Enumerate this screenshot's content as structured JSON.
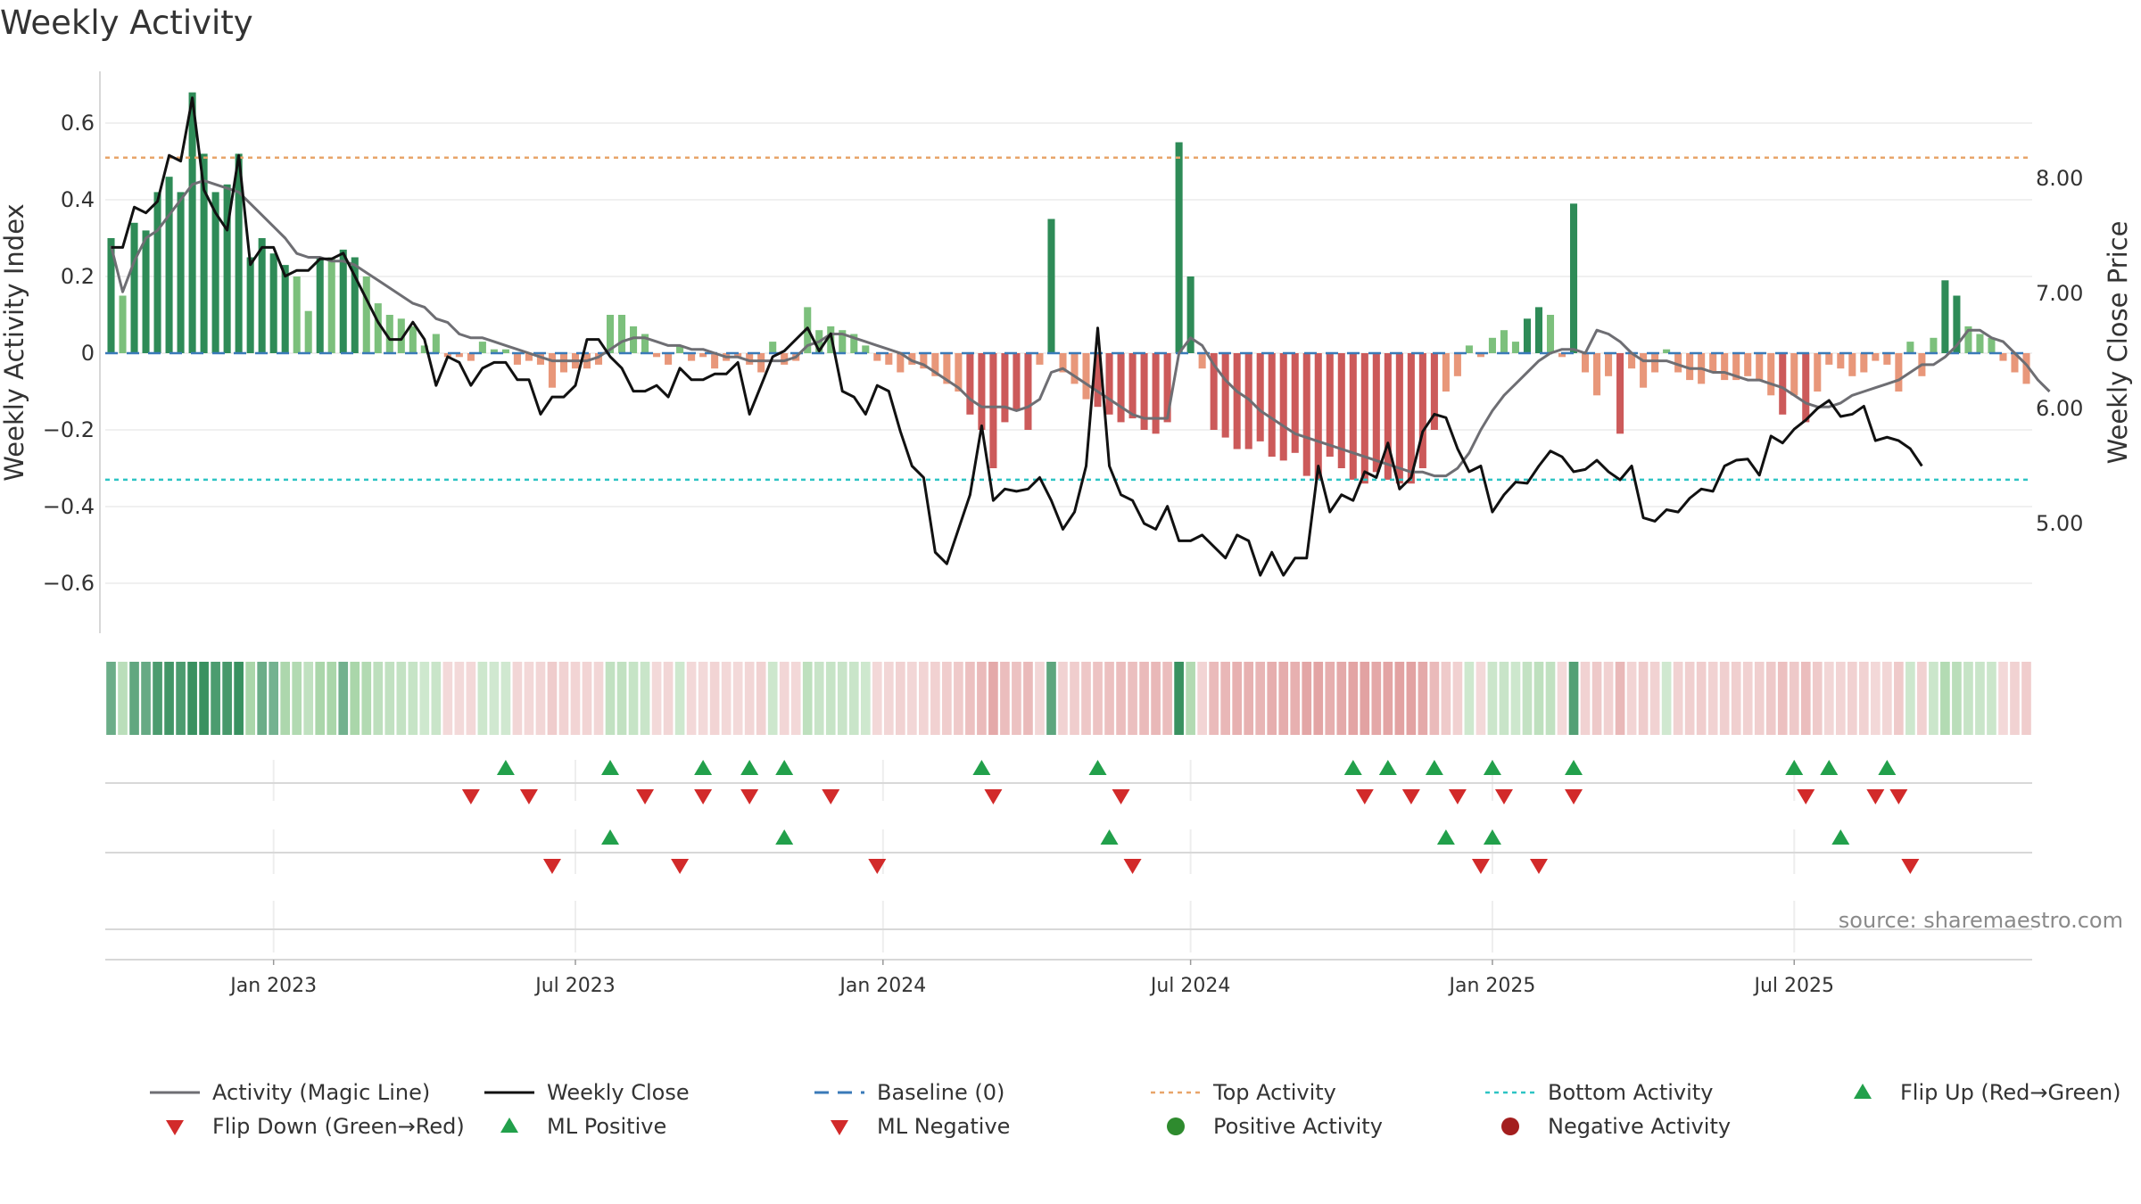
{
  "chart_data": {
    "type": "bar",
    "title": "Weekly Activity",
    "ylabel_left": "Weekly Activity Index",
    "ylabel_right": "Weekly Close Price",
    "ylim_left": [
      -0.74,
      0.74
    ],
    "ylim_right": [
      4.2,
      8.8
    ],
    "yticks_left": [
      {
        "v": 0.6,
        "label": "0.6"
      },
      {
        "v": 0.4,
        "label": "0.4"
      },
      {
        "v": 0.2,
        "label": "0.2"
      },
      {
        "v": 0,
        "label": "0"
      },
      {
        "v": -0.2,
        "label": "−0.2"
      },
      {
        "v": -0.4,
        "label": "−0.4"
      },
      {
        "v": -0.6,
        "label": "−0.6"
      }
    ],
    "yticks_right": [
      {
        "v": 8.0,
        "label": "8.00"
      },
      {
        "v": 7.0,
        "label": "7.00"
      },
      {
        "v": 6.0,
        "label": "6.00"
      },
      {
        "v": 5.0,
        "label": "5.00"
      }
    ],
    "x_start_week": 0,
    "x_end_week": 158,
    "xticks": [
      {
        "week": 14,
        "label": "Jan 2023"
      },
      {
        "week": 40,
        "label": "Jul 2023"
      },
      {
        "week": 66.5,
        "label": "Jan 2024"
      },
      {
        "week": 93,
        "label": "Jul 2024"
      },
      {
        "week": 119,
        "label": "Jan 2025"
      },
      {
        "week": 145,
        "label": "Jul 2025"
      }
    ],
    "top_activity": 0.51,
    "bottom_activity": -0.33,
    "activity": [
      0.3,
      0.15,
      0.34,
      0.32,
      0.42,
      0.46,
      0.42,
      0.68,
      0.52,
      0.42,
      0.44,
      0.52,
      0.25,
      0.3,
      0.26,
      0.23,
      0.2,
      0.11,
      0.25,
      0.25,
      0.27,
      0.25,
      0.2,
      0.13,
      0.1,
      0.09,
      0.07,
      0.02,
      0.05,
      -0.01,
      -0.01,
      -0.02,
      0.03,
      0.01,
      0.01,
      -0.03,
      -0.02,
      -0.03,
      -0.09,
      -0.05,
      -0.04,
      -0.04,
      -0.03,
      0.1,
      0.1,
      0.07,
      0.05,
      -0.01,
      -0.03,
      0.02,
      -0.02,
      -0.01,
      -0.04,
      -0.02,
      -0.01,
      -0.03,
      -0.05,
      0.03,
      -0.03,
      -0.02,
      0.12,
      0.06,
      0.07,
      0.06,
      0.05,
      0.02,
      -0.02,
      -0.03,
      -0.05,
      -0.03,
      -0.04,
      -0.06,
      -0.08,
      -0.1,
      -0.16,
      -0.2,
      -0.3,
      -0.18,
      -0.15,
      -0.2,
      -0.03,
      0.35,
      -0.05,
      -0.08,
      -0.12,
      -0.14,
      -0.16,
      -0.18,
      -0.17,
      -0.2,
      -0.21,
      -0.18,
      0.55,
      0.2,
      -0.04,
      -0.2,
      -0.22,
      -0.25,
      -0.25,
      -0.23,
      -0.27,
      -0.28,
      -0.26,
      -0.32,
      -0.33,
      -0.27,
      -0.3,
      -0.33,
      -0.34,
      -0.31,
      -0.33,
      -0.34,
      -0.34,
      -0.3,
      -0.2,
      -0.1,
      -0.06,
      0.02,
      -0.01,
      0.04,
      0.06,
      0.03,
      0.09,
      0.12,
      0.1,
      -0.01,
      0.39,
      -0.05,
      -0.11,
      -0.06,
      -0.21,
      -0.04,
      -0.09,
      -0.05,
      0.01,
      -0.05,
      -0.07,
      -0.08,
      -0.05,
      -0.07,
      -0.07,
      -0.06,
      -0.07,
      -0.11,
      -0.16,
      -0.11,
      -0.18,
      -0.1,
      -0.03,
      -0.04,
      -0.06,
      -0.05,
      -0.02,
      -0.03,
      -0.1,
      0.03,
      -0.06,
      0.04,
      0.19,
      0.15,
      0.07,
      0.05,
      0.04,
      -0.02,
      -0.05,
      -0.08
    ],
    "magic_line": [
      0.28,
      0.16,
      0.24,
      0.3,
      0.32,
      0.36,
      0.4,
      0.44,
      0.45,
      0.44,
      0.43,
      0.42,
      0.39,
      0.36,
      0.33,
      0.3,
      0.26,
      0.25,
      0.25,
      0.24,
      0.24,
      0.23,
      0.21,
      0.19,
      0.17,
      0.15,
      0.13,
      0.12,
      0.09,
      0.08,
      0.05,
      0.04,
      0.04,
      0.03,
      0.02,
      0.01,
      0.0,
      -0.01,
      -0.02,
      -0.02,
      -0.02,
      -0.02,
      -0.01,
      0.01,
      0.03,
      0.04,
      0.04,
      0.03,
      0.02,
      0.02,
      0.01,
      0.01,
      0.0,
      -0.01,
      -0.01,
      -0.02,
      -0.02,
      -0.02,
      -0.02,
      -0.01,
      0.02,
      0.03,
      0.05,
      0.05,
      0.04,
      0.03,
      0.02,
      0.01,
      0.0,
      -0.02,
      -0.03,
      -0.05,
      -0.07,
      -0.09,
      -0.12,
      -0.14,
      -0.14,
      -0.14,
      -0.15,
      -0.14,
      -0.12,
      -0.05,
      -0.04,
      -0.06,
      -0.08,
      -0.1,
      -0.12,
      -0.14,
      -0.16,
      -0.17,
      -0.17,
      -0.17,
      0.0,
      0.04,
      0.02,
      -0.03,
      -0.07,
      -0.1,
      -0.12,
      -0.15,
      -0.17,
      -0.19,
      -0.21,
      -0.22,
      -0.23,
      -0.24,
      -0.25,
      -0.26,
      -0.27,
      -0.28,
      -0.29,
      -0.3,
      -0.31,
      -0.31,
      -0.32,
      -0.32,
      -0.3,
      -0.26,
      -0.2,
      -0.15,
      -0.11,
      -0.08,
      -0.05,
      -0.02,
      0.0,
      0.01,
      0.01,
      0.0,
      0.06,
      0.05,
      0.03,
      0.0,
      -0.02,
      -0.02,
      -0.02,
      -0.03,
      -0.04,
      -0.04,
      -0.05,
      -0.05,
      -0.06,
      -0.07,
      -0.07,
      -0.08,
      -0.09,
      -0.11,
      -0.13,
      -0.14,
      -0.14,
      -0.13,
      -0.11,
      -0.1,
      -0.09,
      -0.08,
      -0.07,
      -0.05,
      -0.03,
      -0.03,
      -0.01,
      0.02,
      0.06,
      0.06,
      0.04,
      0.03,
      0.0,
      -0.03,
      -0.07,
      -0.1
    ],
    "weekly_close": [
      7.4,
      7.4,
      7.75,
      7.7,
      7.8,
      8.2,
      8.15,
      8.7,
      7.9,
      7.7,
      7.55,
      8.2,
      7.25,
      7.4,
      7.4,
      7.15,
      7.2,
      7.2,
      7.3,
      7.3,
      7.35,
      7.15,
      6.95,
      6.75,
      6.6,
      6.6,
      6.75,
      6.6,
      6.2,
      6.45,
      6.4,
      6.2,
      6.35,
      6.4,
      6.4,
      6.25,
      6.25,
      5.95,
      6.1,
      6.1,
      6.2,
      6.6,
      6.6,
      6.45,
      6.35,
      6.15,
      6.15,
      6.2,
      6.1,
      6.35,
      6.25,
      6.25,
      6.3,
      6.3,
      6.4,
      5.95,
      6.2,
      6.45,
      6.5,
      6.6,
      6.7,
      6.5,
      6.65,
      6.15,
      6.1,
      5.95,
      6.2,
      6.15,
      5.8,
      5.5,
      5.4,
      4.75,
      4.65,
      4.95,
      5.25,
      5.85,
      5.2,
      5.3,
      5.28,
      5.3,
      5.4,
      5.2,
      4.95,
      5.1,
      5.5,
      6.7,
      5.5,
      5.25,
      5.2,
      5.0,
      4.95,
      5.15,
      4.85,
      4.85,
      4.9,
      4.8,
      4.7,
      4.9,
      4.85,
      4.55,
      4.75,
      4.55,
      4.7,
      4.7,
      5.5,
      5.1,
      5.25,
      5.2,
      5.45,
      5.4,
      5.7,
      5.3,
      5.4,
      5.8,
      5.95,
      5.92,
      5.65,
      5.45,
      5.5,
      5.1,
      5.25,
      5.36,
      5.35,
      5.5,
      5.63,
      5.58,
      5.45,
      5.47,
      5.55,
      5.45,
      5.38,
      5.5,
      5.05,
      5.02,
      5.12,
      5.1,
      5.22,
      5.3,
      5.28,
      5.5,
      5.55,
      5.56,
      5.42,
      5.76,
      5.7,
      5.82,
      5.9,
      6.0,
      6.07,
      5.93,
      5.95,
      6.02,
      5.72,
      5.75,
      5.72,
      5.65,
      5.5
    ],
    "flip_up": [
      34,
      43,
      51,
      55,
      58,
      75,
      85,
      107,
      110,
      114,
      119,
      126,
      145,
      148,
      153
    ],
    "flip_down": [
      31,
      36,
      46,
      51,
      55,
      62,
      76,
      87,
      108,
      112,
      116,
      120,
      126,
      146,
      152,
      154
    ],
    "ml_positive": [
      43,
      58,
      86,
      115,
      119,
      149
    ],
    "ml_negative": [
      38,
      49,
      66,
      88,
      118,
      123,
      155
    ],
    "source": "source: sharemaestro.com",
    "colors": {
      "green_strong": "#2e8b57",
      "green_light": "#7cc07c",
      "red_strong": "#cc5a5a",
      "red_light": "#e8977a",
      "magic_line": "#6e6e73",
      "close_line": "#111111",
      "baseline": "#3a7ab8",
      "top_line": "#e8a56a",
      "bottom_line": "#2ec4c4",
      "marker_green": "#22a04b",
      "marker_red": "#d22a2a",
      "dot_green": "#2e8b2e",
      "dot_red": "#a31e1e"
    },
    "legend": [
      {
        "label": "Activity (Magic Line)",
        "symbol": "line-grey"
      },
      {
        "label": "Weekly Close",
        "symbol": "line-black"
      },
      {
        "label": "Baseline (0)",
        "symbol": "dash-blue"
      },
      {
        "label": "Top Activity",
        "symbol": "dot-orange"
      },
      {
        "label": "Bottom Activity",
        "symbol": "dot-cyan"
      },
      {
        "label": "Flip Up (Red→Green)",
        "symbol": "tri-up"
      },
      {
        "label": "Flip Down (Green→Red)",
        "symbol": "tri-down"
      },
      {
        "label": "ML Positive",
        "symbol": "tri-up"
      },
      {
        "label": "ML Negative",
        "symbol": "tri-down"
      },
      {
        "label": "Positive Activity",
        "symbol": "dot-green"
      },
      {
        "label": "Negative Activity",
        "symbol": "dot-red"
      }
    ]
  }
}
